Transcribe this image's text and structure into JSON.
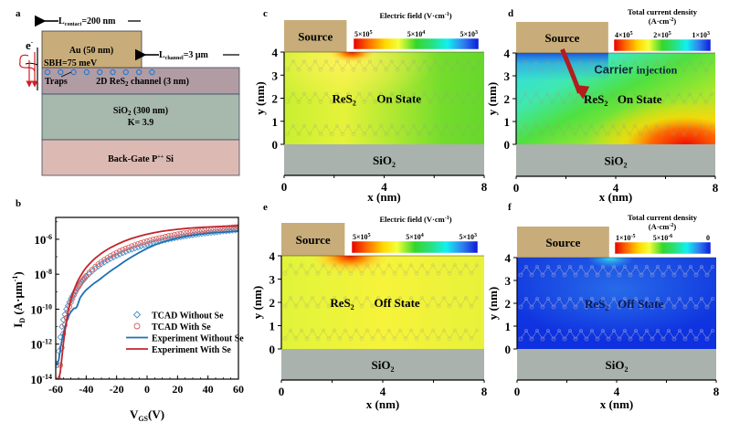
{
  "panel_labels": {
    "a": "a",
    "b": "b",
    "c": "c",
    "d": "d",
    "e": "e",
    "f": "f"
  },
  "colors": {
    "au": "#c8ad7a",
    "res2": "#b19ca4",
    "sio2_a": "#a7b8ad",
    "backgate": "#dcbab3",
    "sio2_sim": "#a9b2ad",
    "source": "#c8ad7a",
    "trap": "#2a7bd0",
    "band_arrow": "#d21f24",
    "exp_without": "#1f6fb2",
    "exp_with": "#c0262d",
    "tcad_without": "#3f8fc8",
    "tcad_with": "#d85a5a",
    "injection_arrow": "#b31d1d"
  },
  "schematic": {
    "l_contact_label": "L",
    "l_contact_sub": "contact",
    "l_contact_value": "=200 nm",
    "l_channel_label": "L",
    "l_channel_sub": "channel",
    "l_channel_value": "=3 μm",
    "electron": "e",
    "electron_sup": "-",
    "au_label": "Au (50 nm)",
    "sbh_label": "SBH=75 meV",
    "traps_label": "Traps",
    "channel_label_pre": "2D ReS",
    "channel_label_sub": "2",
    "channel_label_post": " channel (3 nm)",
    "sio2_label_pre": "SiO",
    "sio2_label_sub": "2",
    "sio2_label_post": " (300 nm)",
    "k_label": "K= 3.9",
    "backgate_label_pre": "Back-Gate P",
    "backgate_label_sup": "++",
    "backgate_label_post": " Si",
    "trap_count": 9
  },
  "chart_data": [
    {
      "id": "b",
      "type": "line",
      "title": "",
      "xlabel": "V",
      "xlabel_sub": "GS",
      "xlabel_post": "(V)",
      "ylabel": "I",
      "ylabel_sub": "D",
      "ylabel_post": " (A·μm",
      "ylabel_sup": "-1",
      "ylabel_end": ")",
      "yscale": "log",
      "xlim": [
        -60,
        60
      ],
      "ylim_log10": [
        -14,
        -4.75
      ],
      "xticks": [
        -60,
        -40,
        -20,
        0,
        20,
        40,
        60
      ],
      "yticks_log10": [
        -14,
        -12,
        -10,
        -8,
        -6
      ],
      "ytick_labels": [
        {
          "base": "10",
          "exp": "-14"
        },
        {
          "base": "10",
          "exp": "-12"
        },
        {
          "base": "10",
          "exp": "-10"
        },
        {
          "base": "10",
          "exp": "-8"
        },
        {
          "base": "10",
          "exp": "-6"
        }
      ],
      "legend_position": "center-right",
      "series": [
        {
          "name": "TCAD Without Se",
          "style": "diamond-markers",
          "color_key": "tcad_without",
          "x": [
            -59,
            -58,
            -57,
            -56,
            -55,
            -54,
            -53,
            -52,
            -51,
            -50,
            -49,
            -48,
            -47,
            -46,
            -45,
            -44,
            -43,
            -42,
            -41,
            -40,
            -38,
            -36,
            -34,
            -32,
            -30,
            -28,
            -26,
            -24,
            -22,
            -20,
            -18,
            -16,
            -14,
            -12,
            -10,
            -8,
            -6,
            -4,
            -2,
            0,
            2,
            4,
            6,
            8,
            10,
            12,
            14,
            16,
            18,
            20,
            22,
            24,
            26,
            28,
            30,
            32,
            34,
            36,
            38,
            40,
            42,
            44,
            46,
            48,
            50,
            52,
            54,
            56,
            58,
            60
          ],
          "log10_y": [
            -13.2,
            -12.4,
            -11.6,
            -11.0,
            -10.6,
            -10.3,
            -10.0,
            -9.8,
            -9.6,
            -9.4,
            -9.25,
            -9.1,
            -8.95,
            -8.8,
            -8.68,
            -8.56,
            -8.45,
            -8.35,
            -8.25,
            -8.15,
            -7.98,
            -7.82,
            -7.67,
            -7.54,
            -7.42,
            -7.31,
            -7.21,
            -7.11,
            -7.02,
            -6.94,
            -6.86,
            -6.78,
            -6.71,
            -6.64,
            -6.58,
            -6.52,
            -6.46,
            -6.4,
            -6.35,
            -6.3,
            -6.25,
            -6.2,
            -6.16,
            -6.12,
            -6.08,
            -6.04,
            -6.0,
            -5.97,
            -5.93,
            -5.9,
            -5.87,
            -5.84,
            -5.81,
            -5.78,
            -5.76,
            -5.73,
            -5.71,
            -5.68,
            -5.66,
            -5.64,
            -5.62,
            -5.6,
            -5.58,
            -5.56,
            -5.54,
            -5.53,
            -5.51,
            -5.49,
            -5.48,
            -5.46
          ]
        },
        {
          "name": "TCAD With Se",
          "style": "circle-markers",
          "color_key": "tcad_with",
          "x": [
            -58,
            -57,
            -56,
            -55,
            -54,
            -53,
            -52,
            -51,
            -50,
            -49,
            -48,
            -47,
            -46,
            -45,
            -44,
            -43,
            -42,
            -41,
            -40,
            -38,
            -36,
            -34,
            -32,
            -30,
            -28,
            -26,
            -24,
            -22,
            -20,
            -18,
            -16,
            -14,
            -12,
            -10,
            -8,
            -6,
            -4,
            -2,
            0,
            2,
            4,
            6,
            8,
            10,
            12,
            14,
            16,
            18,
            20,
            22,
            24,
            26,
            28,
            30,
            32,
            34,
            36,
            38,
            40,
            42,
            44,
            46,
            48,
            50,
            52,
            54,
            56,
            58,
            60
          ],
          "log10_y": [
            -14.0,
            -13.2,
            -12.2,
            -11.4,
            -10.9,
            -10.5,
            -10.15,
            -9.85,
            -9.6,
            -9.38,
            -9.18,
            -9.0,
            -8.84,
            -8.7,
            -8.56,
            -8.43,
            -8.31,
            -8.2,
            -8.09,
            -7.9,
            -7.72,
            -7.56,
            -7.42,
            -7.29,
            -7.17,
            -7.06,
            -6.95,
            -6.86,
            -6.77,
            -6.68,
            -6.6,
            -6.53,
            -6.46,
            -6.39,
            -6.33,
            -6.27,
            -6.21,
            -6.16,
            -6.11,
            -6.06,
            -6.01,
            -5.97,
            -5.93,
            -5.89,
            -5.85,
            -5.81,
            -5.78,
            -5.75,
            -5.71,
            -5.68,
            -5.65,
            -5.63,
            -5.6,
            -5.57,
            -5.55,
            -5.52,
            -5.5,
            -5.48,
            -5.46,
            -5.44,
            -5.42,
            -5.4,
            -5.38,
            -5.36,
            -5.35,
            -5.33,
            -5.31,
            -5.3,
            -5.28
          ]
        },
        {
          "name": "Experiment Without Se",
          "style": "solid-line",
          "color_key": "exp_without",
          "x": [
            -60,
            -59,
            -58,
            -57,
            -56,
            -55,
            -54,
            -53,
            -52,
            -51,
            -50,
            -49,
            -48,
            -47,
            -46,
            -45,
            -44,
            -42,
            -40,
            -38,
            -36,
            -34,
            -32,
            -30,
            -28,
            -26,
            -24,
            -22,
            -20,
            -15,
            -10,
            -5,
            0,
            5,
            10,
            15,
            20,
            25,
            30,
            35,
            40,
            45,
            50,
            55,
            60
          ],
          "log10_y": [
            -13.2,
            -13.15,
            -12.9,
            -12.3,
            -11.8,
            -11.4,
            -11.05,
            -10.75,
            -10.5,
            -10.3,
            -10.15,
            -10.05,
            -9.95,
            -9.95,
            -9.85,
            -9.6,
            -9.35,
            -9.1,
            -8.9,
            -8.75,
            -8.6,
            -8.47,
            -8.35,
            -8.22,
            -8.08,
            -7.95,
            -7.82,
            -7.7,
            -7.58,
            -7.28,
            -7.0,
            -6.75,
            -6.52,
            -6.33,
            -6.17,
            -6.04,
            -5.93,
            -5.84,
            -5.77,
            -5.71,
            -5.66,
            -5.62,
            -5.59,
            -5.56,
            -5.53
          ]
        },
        {
          "name": "Experiment With Se",
          "style": "solid-line",
          "color_key": "exp_with",
          "x": [
            -60,
            -58,
            -57,
            -56,
            -55,
            -54,
            -53,
            -52,
            -51,
            -50,
            -49,
            -48,
            -47,
            -46,
            -45,
            -44,
            -42,
            -40,
            -38,
            -36,
            -34,
            -32,
            -30,
            -28,
            -26,
            -24,
            -22,
            -20,
            -15,
            -10,
            -5,
            0,
            5,
            10,
            15,
            20,
            25,
            30,
            35,
            40,
            45,
            50,
            55,
            60
          ],
          "log10_y": [
            -14.0,
            -14.0,
            -13.6,
            -12.8,
            -12.0,
            -11.3,
            -10.7,
            -10.2,
            -9.8,
            -9.45,
            -9.15,
            -8.9,
            -8.68,
            -8.48,
            -8.3,
            -8.14,
            -7.86,
            -7.62,
            -7.42,
            -7.24,
            -7.08,
            -6.94,
            -6.81,
            -6.69,
            -6.58,
            -6.48,
            -6.39,
            -6.3,
            -6.11,
            -5.95,
            -5.82,
            -5.71,
            -5.62,
            -5.54,
            -5.48,
            -5.43,
            -5.39,
            -5.35,
            -5.32,
            -5.3,
            -5.28,
            -5.26,
            -5.25,
            -5.24
          ]
        }
      ]
    },
    {
      "id": "c",
      "type": "heatmap",
      "title": "Electric field  (V·cm",
      "title_sup": "-1",
      "title_end": ")",
      "colorbar_ticks": [
        {
          "base": "5×10",
          "exp": "5"
        },
        {
          "base": "5×10",
          "exp": "4"
        },
        {
          "base": "5×10",
          "exp": "3"
        }
      ],
      "xlabel": "x (nm)",
      "ylabel": "y (nm)",
      "xlim": [
        0,
        8
      ],
      "ylim": [
        0,
        4
      ],
      "xticks": [
        0,
        4,
        8
      ],
      "yticks": [
        0,
        1,
        2,
        3,
        4
      ],
      "source_label": "Source",
      "source_extent_nm": [
        0,
        2.5
      ],
      "oxide_label": "SiO",
      "oxide_sub": "2",
      "material_label": "ReS",
      "material_sub": "2",
      "state_label": "On State",
      "field_description": "mostly green/yellow-green; hotspot (red) at source edge x≈2.6 nm, y=4 nm"
    },
    {
      "id": "d",
      "type": "heatmap",
      "title": "Total current density",
      "title_line2": "(A·cm",
      "title_sup": "-2",
      "title_end": ")",
      "colorbar_ticks": [
        {
          "base": "4×10",
          "exp": "5"
        },
        {
          "base": "2×10",
          "exp": "5"
        },
        {
          "base": "1×10",
          "exp": "3"
        }
      ],
      "xlabel": "x (nm)",
      "ylabel": "y (nm)",
      "xlim": [
        0,
        8
      ],
      "ylim": [
        0,
        4
      ],
      "xticks": [
        0,
        4,
        8
      ],
      "yticks": [
        0,
        1,
        2,
        3,
        4
      ],
      "source_label": "Source",
      "source_extent_nm": [
        0,
        3.7
      ],
      "oxide_label": "SiO",
      "oxide_sub": "2",
      "material_label": "ReS",
      "material_sub": "2",
      "state_label": "On State",
      "annotation": "Carrier injection",
      "field_description": "cyan/blue near source top-left, green middle, red/orange at bottom-right x>4 nm, y<1 nm"
    },
    {
      "id": "e",
      "type": "heatmap",
      "title": "Electric field  (V·cm",
      "title_sup": "-1",
      "title_end": ")",
      "colorbar_ticks": [
        {
          "base": "5×10",
          "exp": "5"
        },
        {
          "base": "5×10",
          "exp": "4"
        },
        {
          "base": "5×10",
          "exp": "3"
        }
      ],
      "xlabel": "x (nm)",
      "ylabel": "y (nm)",
      "xlim": [
        0,
        8
      ],
      "ylim": [
        0,
        4
      ],
      "xticks": [
        0,
        4,
        8
      ],
      "yticks": [
        0,
        1,
        2,
        3,
        4
      ],
      "source_label": "Source",
      "source_extent_nm": [
        0,
        2.5
      ],
      "oxide_label": "SiO",
      "oxide_sub": "2",
      "material_label": "ReS",
      "material_sub": "2",
      "state_label": "Off State",
      "field_description": "mostly yellow; red/orange hotspot at source edge x≈2.6 nm, y=4 nm"
    },
    {
      "id": "f",
      "type": "heatmap",
      "title": "Total current density",
      "title_line2": "(A·cm",
      "title_sup": "-2",
      "title_end": ")",
      "colorbar_ticks": [
        {
          "base": "1×10",
          "exp": "-5"
        },
        {
          "base": "5×10",
          "exp": "-6"
        },
        {
          "base": "0",
          "exp": ""
        }
      ],
      "xlabel": "x (nm)",
      "ylabel": "y (nm)",
      "xlim": [
        0,
        8
      ],
      "ylim": [
        0,
        4
      ],
      "xticks": [
        0,
        4,
        8
      ],
      "yticks": [
        0,
        1,
        2,
        3,
        4
      ],
      "source_label": "Source",
      "source_extent_nm": [
        0,
        3.7
      ],
      "oxide_label": "SiO",
      "oxide_sub": "2",
      "material_label": "ReS",
      "material_sub": "2",
      "state_label": "Off State",
      "field_description": "mostly blue; lighter blue band in middle; cyan spot near source edge x≈3.8 nm, y=4 nm"
    }
  ]
}
